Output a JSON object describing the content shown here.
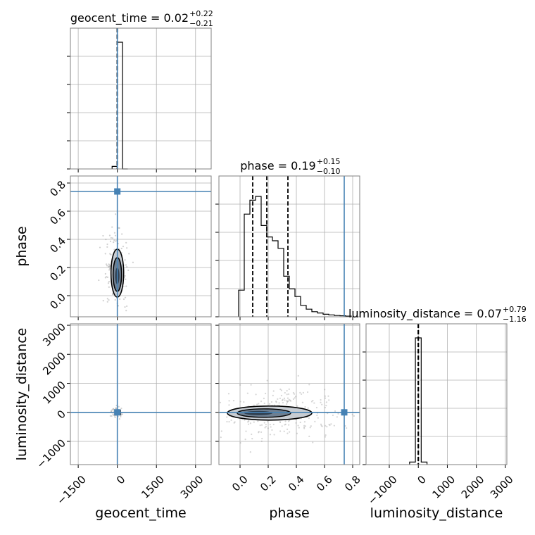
{
  "chart_data": {
    "type": "corner",
    "parameters": [
      "geocent_time",
      "phase",
      "luminosity_distance"
    ],
    "grid": true,
    "truth_color": "#4682b4",
    "contour_color": "#000000",
    "truths": {
      "geocent_time": 0.02,
      "phase": 0.74,
      "luminosity_distance": 0.07
    },
    "diagonal": [
      {
        "parameter": "geocent_time",
        "title": "geocent_time = 0.02",
        "sup": "+0.22",
        "sub": "−0.21",
        "xlim": [
          -1800,
          3600
        ],
        "bins": [
          [
            -200,
            0,
            0.02
          ],
          [
            0,
            200,
            1.0
          ],
          [
            200,
            400,
            0.0
          ]
        ],
        "quantiles": [
          -0.19,
          0.02,
          0.24
        ],
        "show_truth": true
      },
      {
        "parameter": "phase",
        "title": "phase = 0.19",
        "sup": "+0.15",
        "sub": "−0.10",
        "xlim": [
          -0.15,
          0.85
        ],
        "bins": [
          [
            -0.01,
            0.03,
            0.21
          ],
          [
            0.03,
            0.07,
            0.81
          ],
          [
            0.07,
            0.11,
            0.92
          ],
          [
            0.11,
            0.15,
            0.95
          ],
          [
            0.15,
            0.19,
            0.72
          ],
          [
            0.19,
            0.23,
            0.63
          ],
          [
            0.23,
            0.27,
            0.6
          ],
          [
            0.27,
            0.31,
            0.54
          ],
          [
            0.31,
            0.35,
            0.32
          ],
          [
            0.35,
            0.39,
            0.22
          ],
          [
            0.39,
            0.43,
            0.16
          ],
          [
            0.43,
            0.47,
            0.09
          ],
          [
            0.47,
            0.51,
            0.06
          ],
          [
            0.51,
            0.55,
            0.04
          ],
          [
            0.55,
            0.59,
            0.03
          ],
          [
            0.59,
            0.63,
            0.02
          ],
          [
            0.63,
            0.67,
            0.015
          ],
          [
            0.67,
            0.71,
            0.01
          ],
          [
            0.71,
            0.75,
            0.008
          ],
          [
            0.75,
            0.79,
            0.005
          ]
        ],
        "quantiles": [
          0.09,
          0.19,
          0.34
        ],
        "show_truth": true
      },
      {
        "parameter": "luminosity_distance",
        "title": "luminosity_distance = 0.07",
        "sup": "+0.79",
        "sub": "−1.16",
        "xlim": [
          -1800,
          3050
        ],
        "bins": [
          [
            -300,
            -100,
            0.02
          ],
          [
            -100,
            100,
            1.0
          ],
          [
            100,
            300,
            0.02
          ]
        ],
        "quantiles": [
          -1.09,
          0.07,
          0.86
        ],
        "show_truth": false
      }
    ],
    "axis_ticks": {
      "geocent_time": [
        "−1500",
        "0",
        "1500",
        "3000"
      ],
      "phase": [
        "0.0",
        "0.2",
        "0.4",
        "0.6",
        "0.8"
      ],
      "luminosity_distance": [
        "−1000",
        "0",
        "1000",
        "2000",
        "3000"
      ]
    },
    "axis_tick_values": {
      "geocent_time": [
        -1500,
        0,
        1500,
        3000
      ],
      "phase": [
        0.0,
        0.2,
        0.4,
        0.6,
        0.8
      ],
      "luminosity_distance": [
        -1000,
        0,
        1000,
        2000,
        3000
      ]
    },
    "panel_ranges": {
      "geocent_time": [
        -1800,
        3600
      ],
      "phase": [
        -0.15,
        0.85
      ],
      "luminosity_distance": [
        -1800,
        3050
      ]
    }
  }
}
